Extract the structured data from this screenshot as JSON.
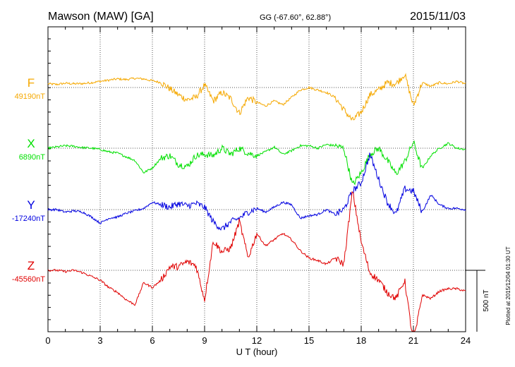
{
  "chart_data": {
    "type": "line",
    "title": "Mawson (MAW)  [GA]",
    "coords": "GG (-67.60°,  62.88°)",
    "date": "2015/11/03",
    "xlabel": "U T (hour)",
    "xlim": [
      0,
      24
    ],
    "x_ticks": [
      "0",
      "3",
      "6",
      "9",
      "12",
      "15",
      "18",
      "21",
      "24"
    ],
    "scale_label": "500 nT",
    "footer": "Plotted at 2015/12/04 01:30 UT",
    "grid": true,
    "x": [
      0,
      0.5,
      1,
      1.5,
      2,
      2.5,
      3,
      3.5,
      4,
      4.5,
      5,
      5.5,
      6,
      6.5,
      7,
      7.5,
      8,
      8.5,
      9,
      9.5,
      10,
      10.5,
      11,
      11.5,
      12,
      12.5,
      13,
      13.5,
      14,
      14.5,
      15,
      15.5,
      16,
      16.5,
      17,
      17.5,
      18,
      18.5,
      19,
      19.5,
      20,
      20.5,
      21,
      21.5,
      22,
      22.5,
      23,
      23.5,
      24
    ],
    "series": [
      {
        "name": "F",
        "baseline_label": "49190nT",
        "color": "#f5a800",
        "values": [
          30,
          25,
          35,
          30,
          32,
          40,
          50,
          60,
          70,
          65,
          75,
          70,
          55,
          40,
          -10,
          -60,
          -100,
          -80,
          20,
          -110,
          -40,
          -90,
          -210,
          -80,
          -120,
          -150,
          -110,
          -140,
          -80,
          -20,
          0,
          -20,
          -40,
          -80,
          -180,
          -270,
          -200,
          -60,
          -20,
          40,
          30,
          110,
          -150,
          40,
          10,
          40,
          30,
          50,
          30
        ]
      },
      {
        "name": "X",
        "baseline_label": "6890nT",
        "color": "#00e000",
        "values": [
          0,
          10,
          20,
          15,
          5,
          0,
          -10,
          -30,
          -40,
          -70,
          -100,
          -200,
          -160,
          -80,
          -60,
          -130,
          -150,
          -60,
          -50,
          -60,
          0,
          -50,
          0,
          -40,
          -60,
          -30,
          10,
          -50,
          -20,
          20,
          20,
          0,
          30,
          20,
          0,
          -300,
          -200,
          -50,
          0,
          -100,
          -210,
          -110,
          50,
          -170,
          -60,
          0,
          40,
          0,
          -10
        ]
      },
      {
        "name": "Y",
        "baseline_label": "-17240nT",
        "color": "#0000e0",
        "values": [
          0,
          0,
          -20,
          -10,
          -20,
          -60,
          -110,
          -70,
          -60,
          -30,
          -10,
          10,
          60,
          40,
          20,
          50,
          30,
          50,
          20,
          -100,
          -160,
          -100,
          -70,
          -20,
          10,
          -20,
          20,
          60,
          40,
          -70,
          -50,
          -40,
          0,
          -40,
          0,
          150,
          220,
          450,
          250,
          60,
          -40,
          170,
          150,
          -20,
          120,
          40,
          10,
          10,
          0
        ]
      },
      {
        "name": "Z",
        "baseline_label": "-45560nT",
        "color": "#e00000",
        "values": [
          0,
          0,
          -10,
          0,
          -20,
          -50,
          -80,
          -140,
          -180,
          -240,
          -280,
          -100,
          -140,
          -80,
          30,
          30,
          70,
          40,
          -240,
          240,
          150,
          180,
          400,
          100,
          300,
          200,
          250,
          300,
          250,
          160,
          100,
          80,
          50,
          100,
          50,
          650,
          230,
          -20,
          -80,
          -180,
          -230,
          -80,
          -600,
          -200,
          -230,
          -170,
          -150,
          -150,
          -170
        ]
      }
    ]
  }
}
